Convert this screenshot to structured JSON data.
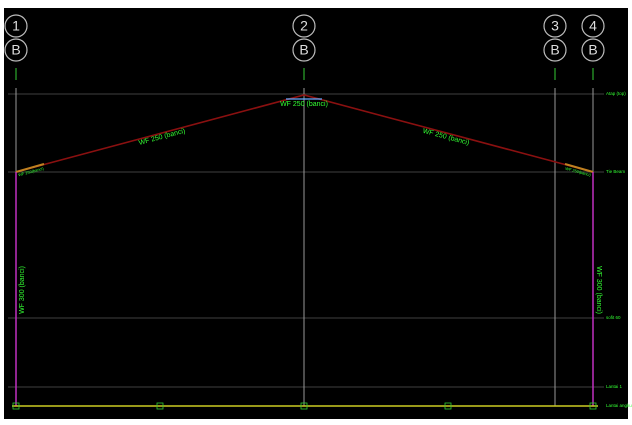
{
  "grids": [
    {
      "number": "1",
      "row": "B"
    },
    {
      "number": "2",
      "row": "B"
    },
    {
      "number": "3",
      "row": "B"
    },
    {
      "number": "4",
      "row": "B"
    }
  ],
  "members": {
    "ridge": "WF 250 (banci)",
    "left_rafter": "WF 250 (banci)",
    "right_rafter": "WF 250 (banci)",
    "left_haunch": "WF 250(banci)",
    "right_haunch": "WF 250(banci)",
    "left_column": "WF 300 (banci)",
    "right_column": "WF 300 (banci)"
  },
  "levels": [
    "Atap (top)",
    "Tie Beam",
    "sofit 60",
    "Lantai 1",
    "Lantai angkur"
  ]
}
